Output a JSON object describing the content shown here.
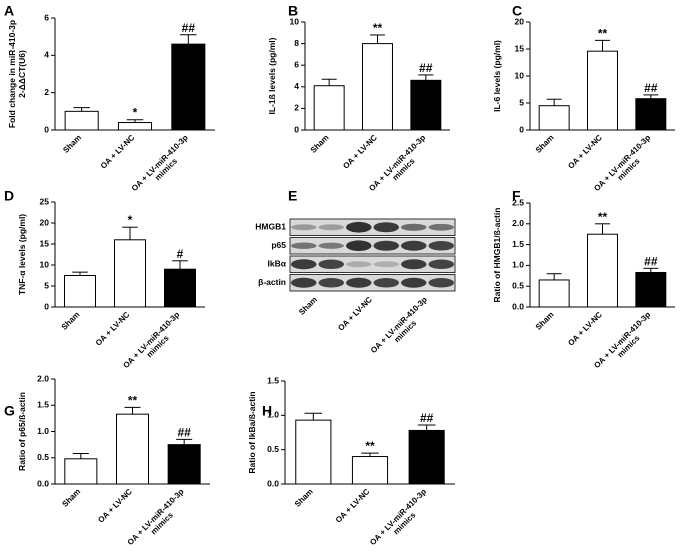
{
  "chart_data": [
    {
      "type": "bar",
      "panel": "A",
      "ylabel": [
        "Fold change in miR-410-3p",
        "2-ΔΔCT(U6)"
      ],
      "categories": [
        [
          "Sham"
        ],
        [
          "OA + LV-NC"
        ],
        [
          "OA + LV-miR-410-3p",
          "mimics"
        ]
      ],
      "values": [
        1.0,
        0.4,
        4.6
      ],
      "errors": [
        0.2,
        0.15,
        0.5
      ],
      "annotations": [
        null,
        "*",
        "##"
      ],
      "colors": [
        "#ffffff",
        "#ffffff",
        "#000000"
      ],
      "ylim": [
        0,
        6
      ],
      "yticks": [
        0,
        2,
        4,
        6
      ]
    },
    {
      "type": "bar",
      "panel": "B",
      "ylabel": [
        "IL-1ß levels (pg/ml)"
      ],
      "categories": [
        [
          "Sham"
        ],
        [
          "OA + LV-NC"
        ],
        [
          "OA + LV-miR-410-3p",
          "mimics"
        ]
      ],
      "values": [
        4.1,
        8.0,
        4.6
      ],
      "errors": [
        0.6,
        0.8,
        0.5
      ],
      "annotations": [
        null,
        "**",
        "##"
      ],
      "colors": [
        "#ffffff",
        "#ffffff",
        "#000000"
      ],
      "ylim": [
        0,
        10
      ],
      "yticks": [
        0,
        2,
        4,
        6,
        8,
        10
      ]
    },
    {
      "type": "bar",
      "panel": "C",
      "ylabel": [
        "IL-6 levels (pg/ml)"
      ],
      "categories": [
        [
          "Sham"
        ],
        [
          "OA + LV-NC"
        ],
        [
          "OA + LV-miR-410-3p",
          "mimics"
        ]
      ],
      "values": [
        4.5,
        14.6,
        5.8
      ],
      "errors": [
        1.2,
        2.0,
        0.7
      ],
      "annotations": [
        null,
        "**",
        "##"
      ],
      "colors": [
        "#ffffff",
        "#ffffff",
        "#000000"
      ],
      "ylim": [
        0,
        20
      ],
      "yticks": [
        0,
        5,
        10,
        15,
        20
      ]
    },
    {
      "type": "bar",
      "panel": "D",
      "ylabel": [
        "TNF-α levels (pg/ml)"
      ],
      "categories": [
        [
          "Sham"
        ],
        [
          "OA + LV-NC"
        ],
        [
          "OA + LV-miR-410-3p",
          "mimics"
        ]
      ],
      "values": [
        7.5,
        16.0,
        9.0
      ],
      "errors": [
        0.8,
        3.0,
        2.0
      ],
      "annotations": [
        null,
        "*",
        "#"
      ],
      "colors": [
        "#ffffff",
        "#ffffff",
        "#000000"
      ],
      "ylim": [
        0,
        25
      ],
      "yticks": [
        0,
        5,
        10,
        15,
        20,
        25
      ]
    },
    {
      "type": "blot",
      "panel": "E",
      "rows": [
        "HMGB1",
        "p65",
        "IkBα",
        "β-actin"
      ],
      "categories": [
        [
          "Sham"
        ],
        [
          "OA + LV-NC"
        ],
        [
          "OA + LV-miR-410-3p",
          "mimics"
        ]
      ]
    },
    {
      "type": "bar",
      "panel": "F",
      "ylabel": [
        "Ratio of HMGB1/ß-actin"
      ],
      "categories": [
        [
          "Sham"
        ],
        [
          "OA + LV-NC"
        ],
        [
          "OA + LV-miR-410-3p",
          "mimics"
        ]
      ],
      "values": [
        0.65,
        1.75,
        0.83
      ],
      "errors": [
        0.15,
        0.25,
        0.1
      ],
      "annotations": [
        null,
        "**",
        "##"
      ],
      "colors": [
        "#ffffff",
        "#ffffff",
        "#000000"
      ],
      "ylim": [
        0,
        2.5
      ],
      "yticks": [
        {
          "value": 0,
          "label": "0.0"
        },
        {
          "value": 0.5,
          "label": "0.5"
        },
        {
          "value": 1,
          "label": "1.0"
        },
        {
          "value": 1.5,
          "label": "1.5"
        },
        {
          "value": 2,
          "label": "2.0"
        },
        {
          "value": 2.5,
          "label": "2.5"
        }
      ]
    },
    {
      "type": "bar",
      "panel": "G",
      "ylabel": [
        "Ratio of p65/ß-actin"
      ],
      "categories": [
        [
          "Sham"
        ],
        [
          "OA + LV-NC"
        ],
        [
          "OA + LV-miR-410-3p",
          "mimics"
        ]
      ],
      "values": [
        0.48,
        1.33,
        0.75
      ],
      "errors": [
        0.1,
        0.13,
        0.1
      ],
      "annotations": [
        null,
        "**",
        "##"
      ],
      "colors": [
        "#ffffff",
        "#ffffff",
        "#000000"
      ],
      "ylim": [
        0,
        2
      ],
      "yticks": [
        {
          "value": 0,
          "label": "0.0"
        },
        {
          "value": 0.5,
          "label": "0.5"
        },
        {
          "value": 1,
          "label": "1.0"
        },
        {
          "value": 1.5,
          "label": "1.5"
        },
        {
          "value": 2,
          "label": "2.0"
        }
      ]
    },
    {
      "type": "bar",
      "panel": "H",
      "ylabel": [
        "Ratio of IkBa/ß-actin"
      ],
      "categories": [
        [
          "Sham"
        ],
        [
          "OA + LV-NC"
        ],
        [
          "OA + LV-miR-410-3p",
          "mimics"
        ]
      ],
      "values": [
        0.93,
        0.4,
        0.78
      ],
      "errors": [
        0.1,
        0.05,
        0.08
      ],
      "annotations": [
        null,
        "**",
        "##"
      ],
      "colors": [
        "#ffffff",
        "#ffffff",
        "#000000"
      ],
      "ylim": [
        0,
        1.5
      ],
      "yticks": [
        {
          "value": 0,
          "label": "0.0"
        },
        {
          "value": 0.5,
          "label": "0.5"
        },
        {
          "value": 1,
          "label": "1.0"
        },
        {
          "value": 1.5,
          "label": "1.5"
        }
      ]
    }
  ]
}
